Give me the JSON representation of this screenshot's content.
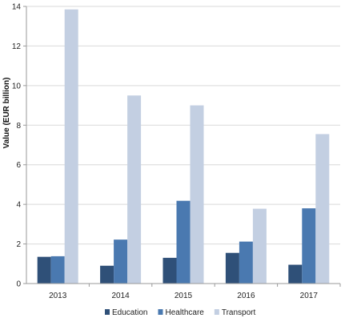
{
  "chart_data": {
    "type": "bar",
    "title": "",
    "xlabel": "",
    "ylabel": "Value (EUR billion)",
    "ylim": [
      0,
      14
    ],
    "yticks": [
      0,
      2,
      4,
      6,
      8,
      10,
      12,
      14
    ],
    "categories": [
      "2013",
      "2014",
      "2015",
      "2016",
      "2017"
    ],
    "series": [
      {
        "name": "Education",
        "color": "#2f5078",
        "values": [
          1.35,
          0.9,
          1.3,
          1.55,
          0.95
        ]
      },
      {
        "name": "Healthcare",
        "color": "#4a79b0",
        "values": [
          1.38,
          2.22,
          4.18,
          2.12,
          3.8
        ]
      },
      {
        "name": "Transport",
        "color": "#c3cfe2",
        "values": [
          13.85,
          9.5,
          9.0,
          3.78,
          7.55
        ]
      }
    ],
    "grid": true,
    "legend_position": "bottom"
  }
}
